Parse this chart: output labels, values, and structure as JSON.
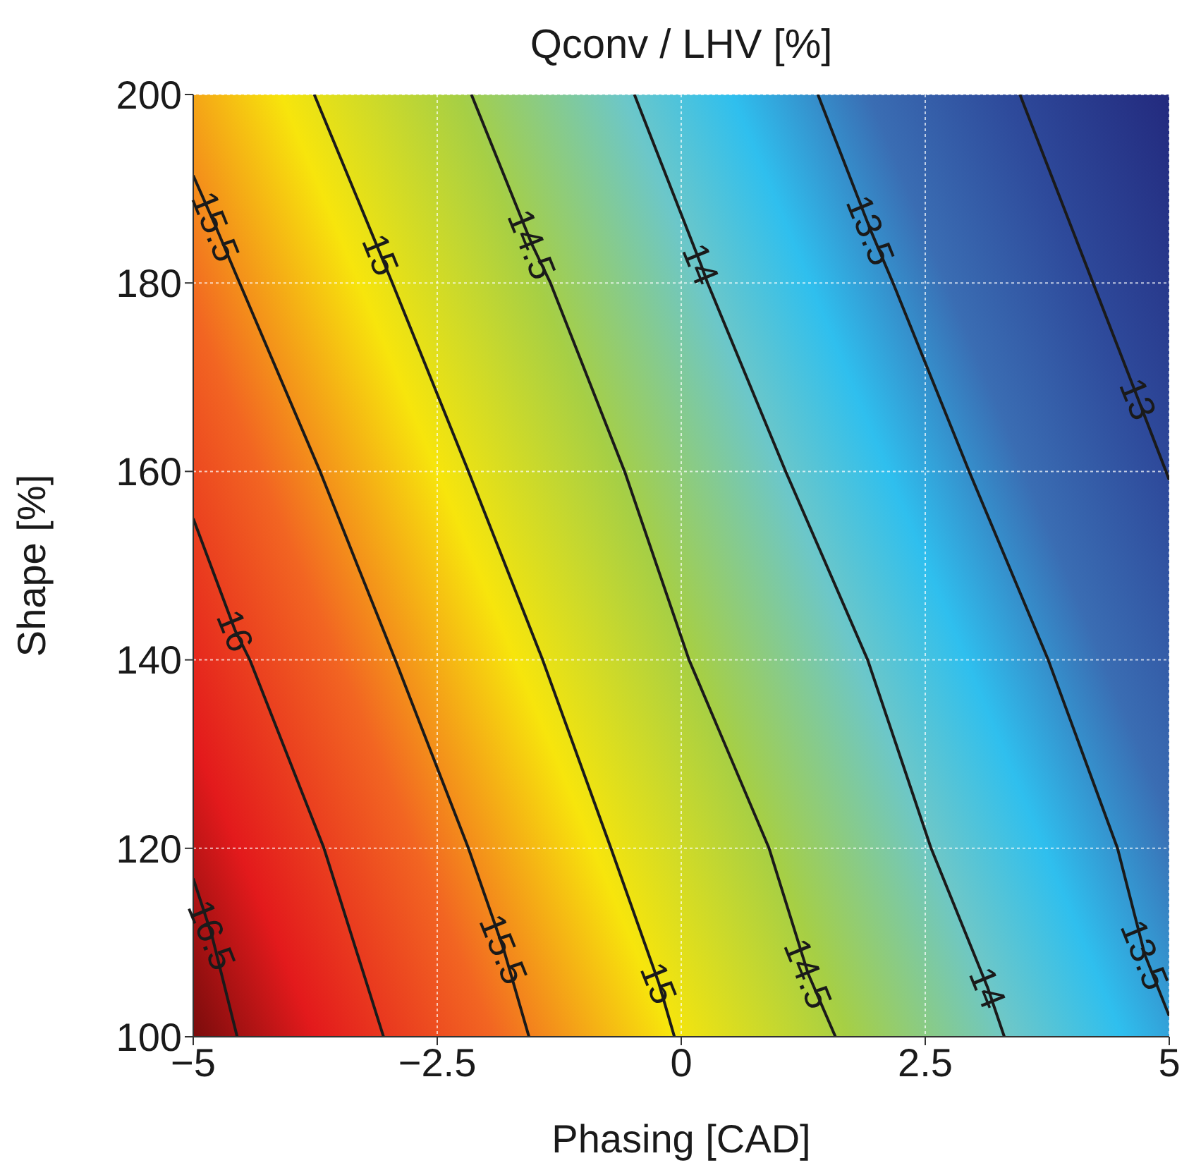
{
  "chart_data": {
    "type": "line",
    "title": "Qconv / LHV [%]",
    "xlabel": "Phasing [CAD]",
    "ylabel": "Shape [%]",
    "xlim": [
      -5,
      5
    ],
    "xticks": [
      {
        "value": -5,
        "label": "−5"
      },
      {
        "value": -2.5,
        "label": "−2.5"
      },
      0,
      2.5,
      5
    ],
    "ylim": [
      100,
      200
    ],
    "yticks": [
      100,
      120,
      140,
      160,
      180,
      200
    ],
    "grid": true,
    "marker": "none",
    "line_style": "solid",
    "series": [
      {
        "color": "#1a1a1a",
        "x": [
          -5,
          -4.81,
          -4.55
        ],
        "values": [
          116.8,
          110.8,
          100
        ]
      },
      {
        "color": "#1a1a1a",
        "x": [
          -5,
          -4.57,
          -4.42,
          -3.66,
          -3.05
        ],
        "values": [
          155,
          143.1,
          140,
          120,
          100
        ]
      },
      {
        "color": "#1a1a1a",
        "x": [
          -5,
          -4.77,
          -4.57,
          -3.7,
          -3.32,
          -2.93,
          -2.18,
          -1.82,
          -1.56
        ],
        "values": [
          191.4,
          186,
          181.1,
          160,
          150.1,
          140,
          120,
          109.3,
          100
        ]
      },
      {
        "color": "#1a1a1a",
        "x": [
          -3.76,
          -3.08,
          -2.96,
          -2.18,
          -1.42,
          -0.72,
          -0.23,
          -0.07
        ],
        "values": [
          200,
          183,
          180,
          160,
          140,
          120,
          105.7,
          100
        ]
      },
      {
        "color": "#1a1a1a",
        "x": [
          -2.15,
          -1.53,
          -1.34,
          -0.58,
          0.08,
          0.9,
          1.3,
          1.58
        ],
        "values": [
          200,
          184.1,
          180,
          160,
          140,
          120,
          106.7,
          100
        ]
      },
      {
        "color": "#1a1a1a",
        "x": [
          -0.48,
          0.2,
          0.27,
          1.07,
          1.91,
          2.56,
          3.14,
          3.31
        ],
        "values": [
          200,
          182,
          180,
          160,
          140,
          120,
          105.2,
          100
        ]
      },
      {
        "color": "#1a1a1a",
        "x": [
          1.4,
          1.94,
          2.17,
          2.95,
          3.76,
          4.47,
          4.75,
          5
        ],
        "values": [
          200,
          185.6,
          180,
          160,
          140,
          120,
          108.7,
          102.2
        ]
      },
      {
        "color": "#1a1a1a",
        "x": [
          3.47,
          4.68,
          5
        ],
        "values": [
          200,
          167.7,
          159.1
        ]
      }
    ],
    "annotations": [
      {
        "text": "16.5",
        "x": -4.81,
        "y": 110.8
      },
      {
        "text": "16",
        "x": -4.57,
        "y": 143.1
      },
      {
        "text": "15.5",
        "x": -4.77,
        "y": 186
      },
      {
        "text": "15",
        "x": -3.08,
        "y": 183
      },
      {
        "text": "14.5",
        "x": -1.53,
        "y": 184.1
      },
      {
        "text": "14",
        "x": 0.2,
        "y": 182
      },
      {
        "text": "13.5",
        "x": 1.94,
        "y": 185.6
      },
      {
        "text": "13",
        "x": 4.68,
        "y": 167.7
      },
      {
        "text": "15.5",
        "x": -1.82,
        "y": 109.3
      },
      {
        "text": "15",
        "x": -0.23,
        "y": 105.7
      },
      {
        "text": "14.5",
        "x": 1.3,
        "y": 106.7
      },
      {
        "text": "14",
        "x": 3.14,
        "y": 105.2
      },
      {
        "text": "13.5",
        "x": 4.75,
        "y": 108.7
      }
    ]
  }
}
